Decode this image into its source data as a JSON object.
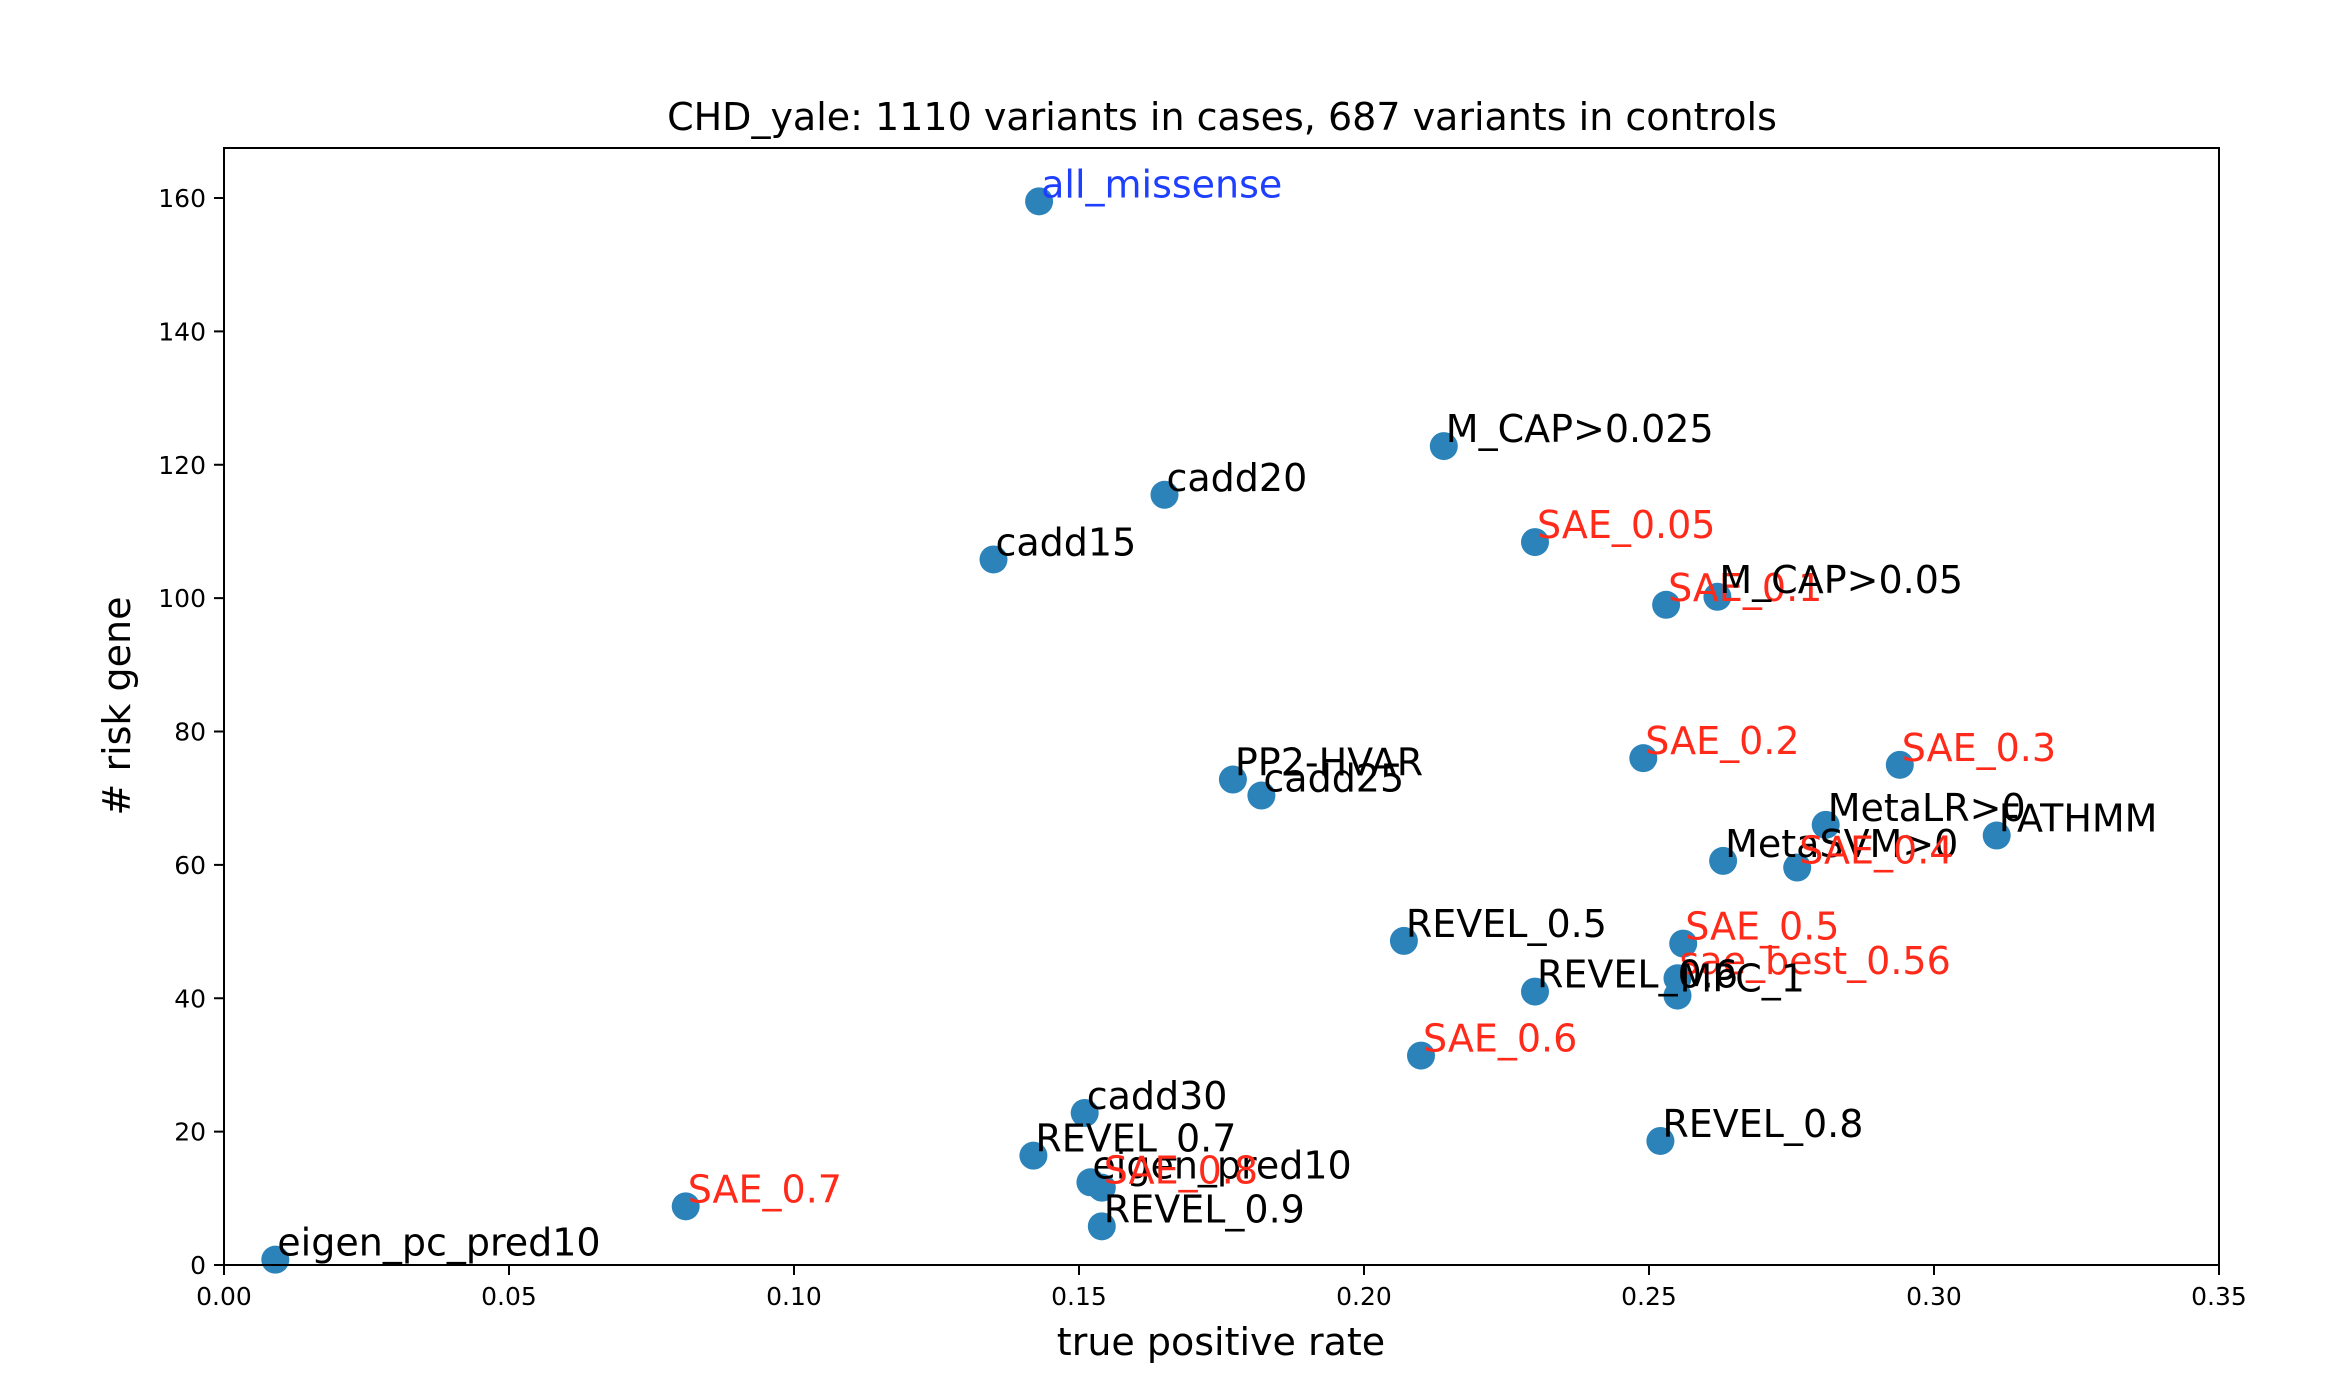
{
  "chart_data": {
    "type": "scatter",
    "title": "CHD_yale: 1110 variants in cases, 687 variants in controls",
    "xlabel": "true positive rate",
    "ylabel": "# risk gene",
    "xlim": [
      0.0,
      0.35
    ],
    "ylim": [
      0,
      167.5
    ],
    "xticks": [
      "0.00",
      "0.05",
      "0.10",
      "0.15",
      "0.20",
      "0.25",
      "0.30",
      "0.35"
    ],
    "yticks": [
      "0",
      "20",
      "40",
      "60",
      "80",
      "100",
      "120",
      "140",
      "160"
    ],
    "grid": false,
    "marker_color": "#2b83ba",
    "label_colors": {
      "default": "#000000",
      "sae": "#ff2a1a",
      "baseline": "#1f3fff"
    },
    "points": [
      {
        "label": "all_missense",
        "x": 0.143,
        "y": 159.5,
        "group": "baseline"
      },
      {
        "label": "M_CAP>0.025",
        "x": 0.214,
        "y": 122.8,
        "group": "default"
      },
      {
        "label": "cadd20",
        "x": 0.165,
        "y": 115.5,
        "group": "default"
      },
      {
        "label": "cadd15",
        "x": 0.135,
        "y": 105.8,
        "group": "default"
      },
      {
        "label": "SAE_0.05",
        "x": 0.23,
        "y": 108.4,
        "group": "sae"
      },
      {
        "label": "SAE_0.1",
        "x": 0.253,
        "y": 99.0,
        "group": "sae"
      },
      {
        "label": "M_CAP>0.05",
        "x": 0.262,
        "y": 100.2,
        "group": "default"
      },
      {
        "label": "SAE_0.2",
        "x": 0.249,
        "y": 76.0,
        "group": "sae"
      },
      {
        "label": "SAE_0.3",
        "x": 0.294,
        "y": 75.0,
        "group": "sae"
      },
      {
        "label": "PP2-HVAR",
        "x": 0.177,
        "y": 72.8,
        "group": "default"
      },
      {
        "label": "cadd25",
        "x": 0.182,
        "y": 70.4,
        "group": "default"
      },
      {
        "label": "MetaLR>0",
        "x": 0.281,
        "y": 66.0,
        "group": "default"
      },
      {
        "label": "FATHMM",
        "x": 0.311,
        "y": 64.4,
        "group": "default"
      },
      {
        "label": "MetaSVM>0",
        "x": 0.263,
        "y": 60.6,
        "group": "default"
      },
      {
        "label": "SAE_0.4",
        "x": 0.276,
        "y": 59.6,
        "group": "sae"
      },
      {
        "label": "REVEL_0.5",
        "x": 0.207,
        "y": 48.6,
        "group": "default"
      },
      {
        "label": "SAE_0.5",
        "x": 0.256,
        "y": 48.2,
        "group": "sae"
      },
      {
        "label": "sae_best_0.56",
        "x": 0.255,
        "y": 43.0,
        "group": "sae"
      },
      {
        "label": "REVEL_0.6",
        "x": 0.23,
        "y": 41.0,
        "group": "default"
      },
      {
        "label": "MPC_1",
        "x": 0.255,
        "y": 40.4,
        "group": "default"
      },
      {
        "label": "SAE_0.6",
        "x": 0.21,
        "y": 31.4,
        "group": "sae"
      },
      {
        "label": "cadd30",
        "x": 0.151,
        "y": 22.8,
        "group": "default"
      },
      {
        "label": "REVEL_0.8",
        "x": 0.252,
        "y": 18.6,
        "group": "default"
      },
      {
        "label": "REVEL_0.7",
        "x": 0.142,
        "y": 16.4,
        "group": "default"
      },
      {
        "label": "eigen_pred10",
        "x": 0.152,
        "y": 12.4,
        "group": "default"
      },
      {
        "label": "SAE_0.8",
        "x": 0.154,
        "y": 11.6,
        "group": "sae"
      },
      {
        "label": "SAE_0.7",
        "x": 0.081,
        "y": 8.8,
        "group": "sae"
      },
      {
        "label": "REVEL_0.9",
        "x": 0.154,
        "y": 5.8,
        "group": "default"
      },
      {
        "label": "eigen_pc_pred10",
        "x": 0.009,
        "y": 0.8,
        "group": "default"
      }
    ]
  }
}
